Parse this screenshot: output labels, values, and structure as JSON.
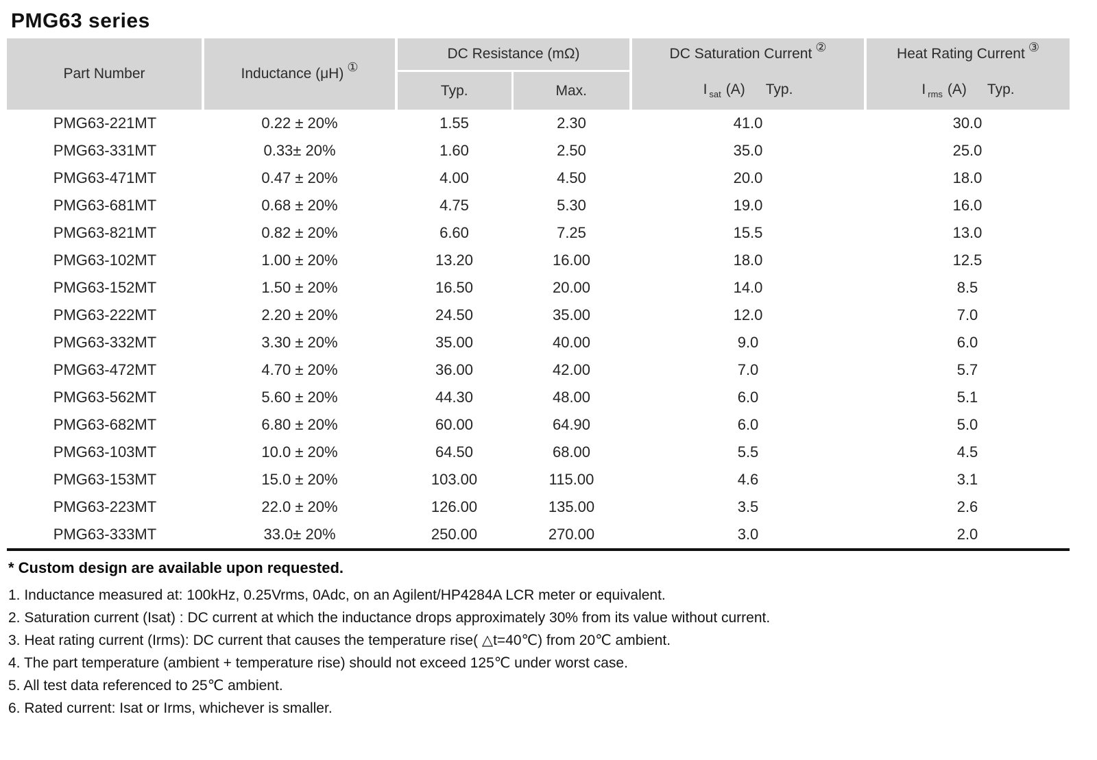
{
  "title": "PMG63 series",
  "colors": {
    "header_bg": "#d5d5d5",
    "rule": "#111111",
    "text": "#242424"
  },
  "table": {
    "headers": {
      "part_number": "Part Number",
      "inductance": "Inductance (μH)",
      "inductance_note": "①",
      "dc_resistance": "DC Resistance (mΩ)",
      "typ": "Typ.",
      "max": "Max.",
      "saturation": "DC Saturation Current",
      "saturation_note": "②",
      "sat_symbol": "I",
      "sat_symbol_sub": "sat",
      "sat_unit": "(A)",
      "sat_typ": "Typ.",
      "heat": "Heat Rating Current",
      "heat_note": "③",
      "heat_symbol": "I",
      "heat_symbol_sub": "rms",
      "heat_unit": "(A)",
      "heat_typ": "Typ."
    },
    "column_keys": [
      "part-number-cell",
      "inductance-cell",
      "dcr-typ-cell",
      "dcr-max-cell",
      "isat-cell",
      "irms-cell"
    ],
    "rows": [
      [
        "PMG63-221MT",
        "0.22 ± 20%",
        "1.55",
        "2.30",
        "41.0",
        "30.0"
      ],
      [
        "PMG63-331MT",
        "0.33± 20%",
        "1.60",
        "2.50",
        "35.0",
        "25.0"
      ],
      [
        "PMG63-471MT",
        "0.47 ± 20%",
        "4.00",
        "4.50",
        "20.0",
        "18.0"
      ],
      [
        "PMG63-681MT",
        "0.68 ± 20%",
        "4.75",
        "5.30",
        "19.0",
        "16.0"
      ],
      [
        "PMG63-821MT",
        "0.82 ± 20%",
        "6.60",
        "7.25",
        "15.5",
        "13.0"
      ],
      [
        "PMG63-102MT",
        "1.00 ± 20%",
        "13.20",
        "16.00",
        "18.0",
        "12.5"
      ],
      [
        "PMG63-152MT",
        "1.50 ± 20%",
        "16.50",
        "20.00",
        "14.0",
        "8.5"
      ],
      [
        "PMG63-222MT",
        "2.20 ± 20%",
        "24.50",
        "35.00",
        "12.0",
        "7.0"
      ],
      [
        "PMG63-332MT",
        "3.30 ± 20%",
        "35.00",
        "40.00",
        "9.0",
        "6.0"
      ],
      [
        "PMG63-472MT",
        "4.70 ± 20%",
        "36.00",
        "42.00",
        "7.0",
        "5.7"
      ],
      [
        "PMG63-562MT",
        "5.60 ± 20%",
        "44.30",
        "48.00",
        "6.0",
        "5.1"
      ],
      [
        "PMG63-682MT",
        "6.80 ± 20%",
        "60.00",
        "64.90",
        "6.0",
        "5.0"
      ],
      [
        "PMG63-103MT",
        "10.0 ± 20%",
        "64.50",
        "68.00",
        "5.5",
        "4.5"
      ],
      [
        "PMG63-153MT",
        "15.0 ± 20%",
        "103.00",
        "115.00",
        "4.6",
        "3.1"
      ],
      [
        "PMG63-223MT",
        "22.0 ± 20%",
        "126.00",
        "135.00",
        "3.5",
        "2.6"
      ],
      [
        "PMG63-333MT",
        "33.0± 20%",
        "250.00",
        "270.00",
        "3.0",
        "2.0"
      ]
    ]
  },
  "footnotes": {
    "custom": "* Custom design are available upon requested.",
    "items": [
      "1. Inductance measured at: 100kHz, 0.25Vrms, 0Adc, on an Agilent/HP4284A LCR meter or equivalent.",
      "2. Saturation current (Isat) : DC current at which the inductance drops approximately 30% from its value without current.",
      "3. Heat rating current (Irms): DC current that causes the temperature rise( △t=40℃) from 20℃ ambient.",
      "4. The part temperature (ambient + temperature rise) should not exceed 125℃ under worst case.",
      "5. All test data referenced to 25℃ ambient.",
      "6. Rated current: Isat or Irms, whichever is smaller."
    ]
  }
}
